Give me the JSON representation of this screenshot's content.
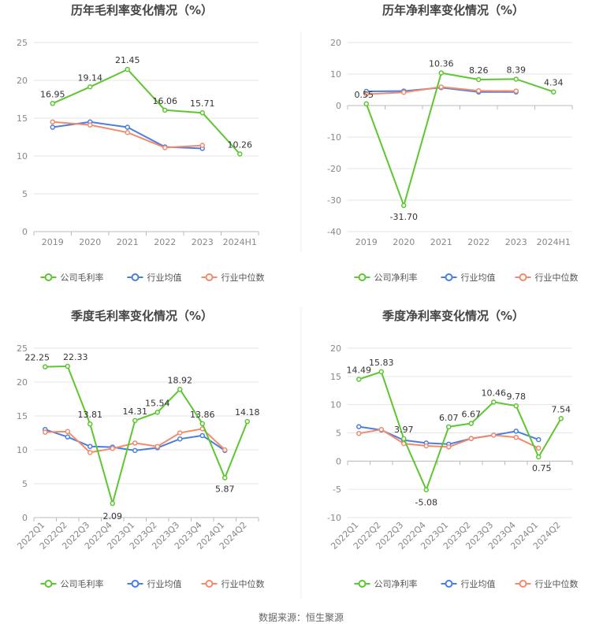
{
  "source_note": "数据来源：恒生聚源",
  "legend_labels": [
    "公司毛利率",
    "公司净利率",
    "行业均值",
    "行业中位数"
  ],
  "colors": {
    "company": "#5dc630",
    "avg": "#4a7ee0",
    "median": "#f28a6c",
    "grid": "#e6e6e6",
    "axis": "#bbbbbb"
  },
  "chart_data": [
    {
      "id": "annual-gross",
      "type": "line",
      "title": "历年毛利率变化情况（%）",
      "categories": [
        "2019",
        "2020",
        "2021",
        "2022",
        "2023",
        "2024H1"
      ],
      "ylim": [
        0,
        25
      ],
      "yticks": [
        0,
        5,
        10,
        15,
        20,
        25
      ],
      "series": [
        {
          "name": "公司毛利率",
          "color": "company",
          "values": [
            16.95,
            19.14,
            21.45,
            16.06,
            15.71,
            10.26
          ],
          "labels": [
            "16.95",
            "19.14",
            "21.45",
            "16.06",
            "15.71",
            "10.26"
          ]
        },
        {
          "name": "行业均值",
          "color": "avg",
          "values": [
            13.8,
            14.5,
            13.8,
            11.2,
            11.0,
            null
          ]
        },
        {
          "name": "行业中位数",
          "color": "median",
          "values": [
            14.5,
            14.1,
            13.1,
            11.1,
            11.4,
            null
          ]
        }
      ]
    },
    {
      "id": "annual-net",
      "type": "line",
      "title": "历年净利率变化情况（%）",
      "categories": [
        "2019",
        "2020",
        "2021",
        "2022",
        "2023",
        "2024H1"
      ],
      "ylim": [
        -40,
        20
      ],
      "yticks": [
        -40,
        -30,
        -20,
        -10,
        0,
        10,
        20
      ],
      "series": [
        {
          "name": "公司净利率",
          "color": "company",
          "values": [
            0.55,
            -31.7,
            10.36,
            8.26,
            8.39,
            4.34
          ],
          "labels": [
            "0.55",
            "-31.70",
            "10.36",
            "8.26",
            "8.39",
            "4.34"
          ]
        },
        {
          "name": "行业均值",
          "color": "avg",
          "values": [
            4.5,
            4.6,
            5.7,
            4.3,
            4.3,
            null
          ]
        },
        {
          "name": "行业中位数",
          "color": "median",
          "values": [
            3.6,
            4.2,
            5.9,
            4.7,
            4.6,
            null
          ]
        }
      ]
    },
    {
      "id": "quarterly-gross",
      "type": "line",
      "title": "季度毛利率变化情况（%）",
      "categories": [
        "2022Q1",
        "2022Q2",
        "2022Q3",
        "2022Q4",
        "2023Q1",
        "2023Q2",
        "2023Q3",
        "2023Q4",
        "2024Q1",
        "2024Q2"
      ],
      "ylim": [
        0,
        25
      ],
      "yticks": [
        0,
        5,
        10,
        15,
        20,
        25
      ],
      "series": [
        {
          "name": "公司毛利率",
          "color": "company",
          "values": [
            22.25,
            22.33,
            13.81,
            2.09,
            14.31,
            15.54,
            18.92,
            13.86,
            5.87,
            14.18
          ],
          "labels": [
            "22.25",
            "22.33",
            "13.81",
            "2.09",
            "14.31",
            "15.54",
            "18.92",
            "13.86",
            "5.87",
            "14.18"
          ]
        },
        {
          "name": "行业均值",
          "color": "avg",
          "values": [
            13.0,
            11.9,
            10.5,
            10.4,
            9.9,
            10.3,
            11.6,
            12.1,
            9.9,
            null
          ]
        },
        {
          "name": "行业中位数",
          "color": "median",
          "values": [
            12.6,
            12.7,
            9.6,
            10.2,
            11.0,
            10.5,
            12.5,
            13.1,
            10.0,
            null
          ]
        }
      ]
    },
    {
      "id": "quarterly-net",
      "type": "line",
      "title": "季度净利率变化情况（%）",
      "categories": [
        "2022Q1",
        "2022Q2",
        "2022Q3",
        "2022Q4",
        "2023Q1",
        "2023Q2",
        "2023Q3",
        "2023Q4",
        "2024Q1",
        "2024Q2"
      ],
      "ylim": [
        -10,
        20
      ],
      "yticks": [
        -10,
        -5,
        0,
        5,
        10,
        15,
        20
      ],
      "series": [
        {
          "name": "公司净利率",
          "color": "company",
          "values": [
            14.49,
            15.83,
            3.97,
            -5.08,
            6.07,
            6.67,
            10.46,
            9.78,
            0.75,
            7.54
          ],
          "labels": [
            "14.49",
            "15.83",
            "3.97",
            "-5.08",
            "6.07",
            "6.67",
            "10.46",
            "9.78",
            "0.75",
            "7.54"
          ]
        },
        {
          "name": "行业均值",
          "color": "avg",
          "values": [
            6.1,
            5.5,
            3.7,
            3.2,
            3.0,
            4.0,
            4.6,
            5.3,
            3.8,
            null
          ]
        },
        {
          "name": "行业中位数",
          "color": "median",
          "values": [
            4.9,
            5.6,
            3.1,
            2.7,
            2.5,
            4.0,
            4.6,
            4.2,
            2.3,
            null
          ]
        }
      ]
    }
  ]
}
